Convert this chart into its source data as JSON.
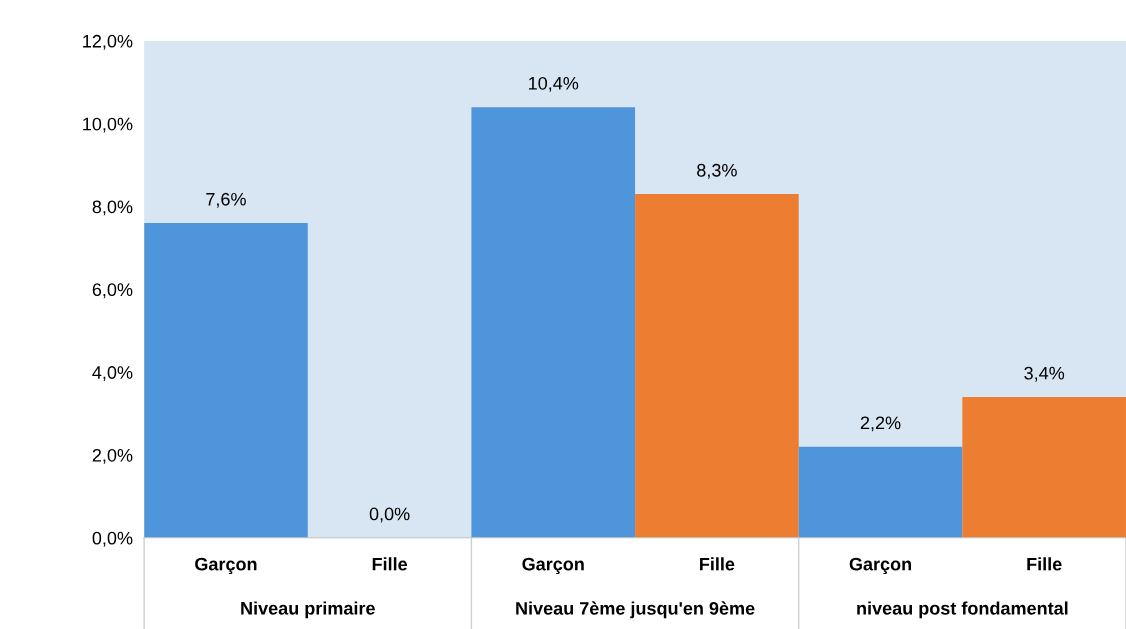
{
  "chart_data": {
    "type": "bar",
    "categories": [
      "Garçon",
      "Fille",
      "Garçon",
      "Fille",
      "Garçon",
      "Fille"
    ],
    "values": [
      7.6,
      0.0,
      10.4,
      8.3,
      2.2,
      3.4
    ],
    "colors": [
      "#4f95dc",
      "#4f95dc",
      "#4f95dc",
      "#ed7d31",
      "#4f95dc",
      "#ed7d31"
    ],
    "value_labels": [
      "7,6%",
      "0,0%",
      "10,4%",
      "8,3%",
      "2,2%",
      "3,4%"
    ],
    "ylim": [
      0,
      12
    ],
    "yticks": [
      {
        "value": 0,
        "label": "0,0%"
      },
      {
        "value": 2,
        "label": "2,0%"
      },
      {
        "value": 4,
        "label": "4,0%"
      },
      {
        "value": 6,
        "label": "6,0%"
      },
      {
        "value": 8,
        "label": "8,0%"
      },
      {
        "value": 10,
        "label": "10,0%"
      },
      {
        "value": 12,
        "label": "12,0%"
      }
    ],
    "annotations": [
      "Niveau primaire",
      "Niveau 7ème jusqu'en 9ème",
      "niveau post fondamental"
    ],
    "grid": false,
    "legend": false
  }
}
